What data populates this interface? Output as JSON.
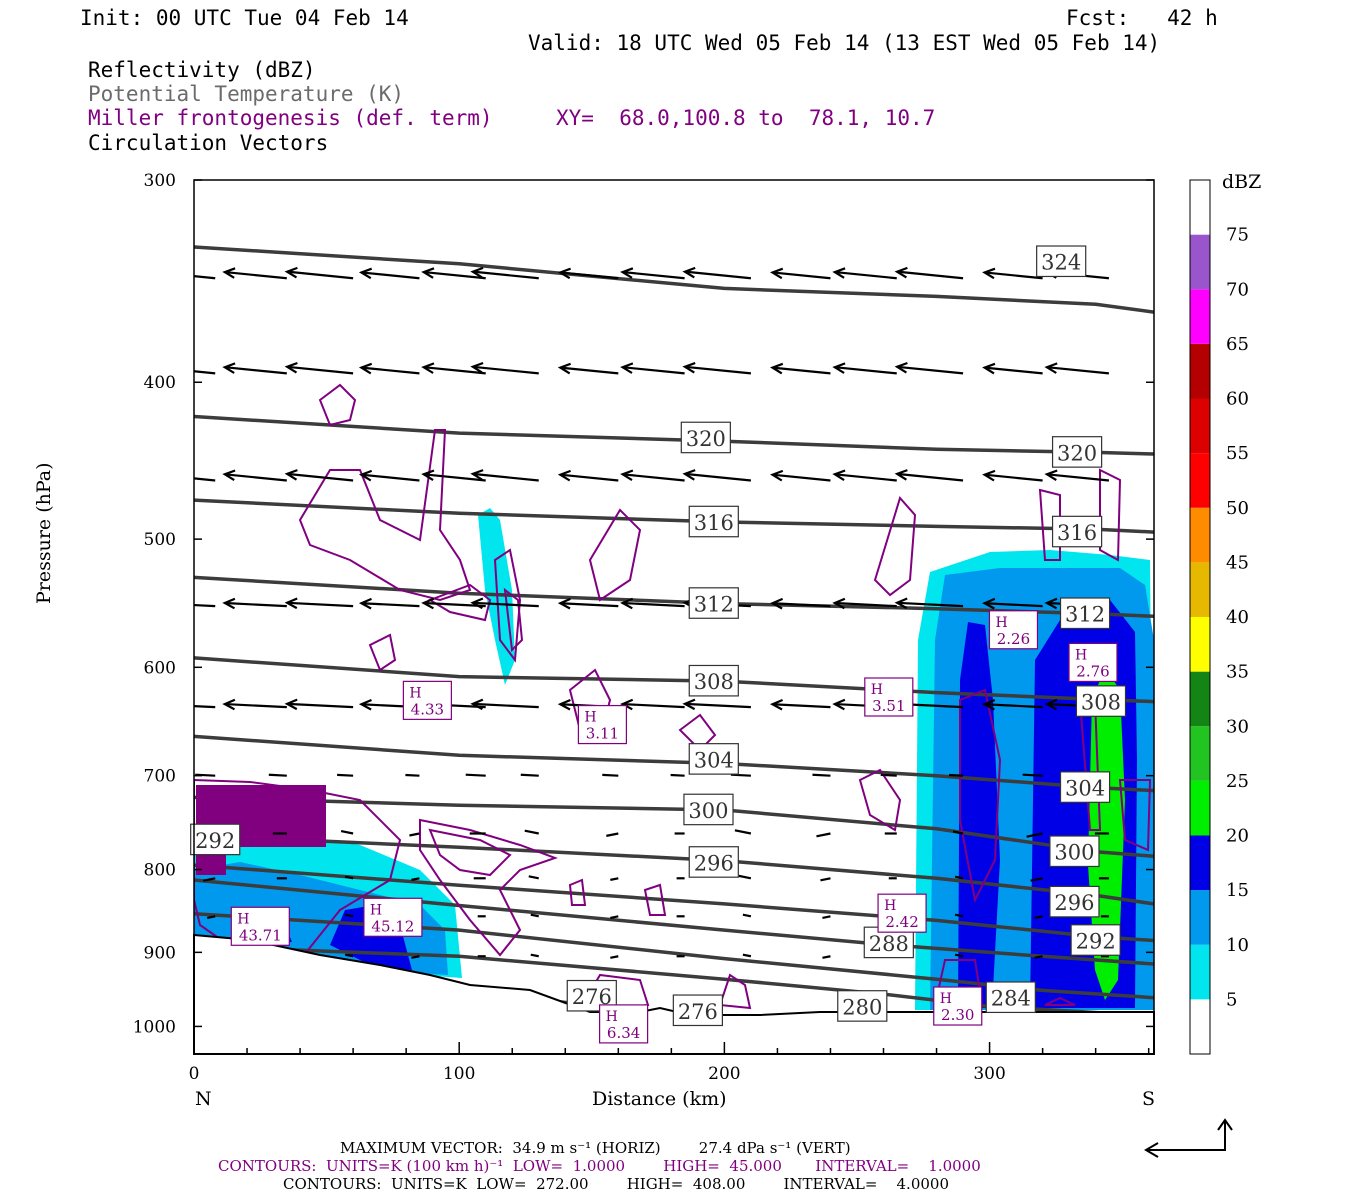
{
  "header": {
    "init": "Init: 00 UTC Tue 04 Feb 14",
    "fcst": "Fcst:   42 h",
    "valid": "Valid: 18 UTC Wed 05 Feb 14 (13 EST Wed 05 Feb 14)"
  },
  "legend_lines": {
    "reflectivity": "Reflectivity (dBZ)",
    "theta": "Potential Temperature (K)",
    "frontogenesis": "Miller frontogenesis (def. term)",
    "xy": "XY=  68.0,100.8 to  78.1, 10.7",
    "vectors": "Circulation Vectors"
  },
  "footer": {
    "max_vector": "MAXIMUM VECTOR:  34.9 m s⁻¹ (HORIZ)        27.4 dPa s⁻¹ (VERT)",
    "contours_fronto": "CONTOURS:  UNITS=K (100 km h)⁻¹  LOW=  1.0000        HIGH=  45.000       INTERVAL=    1.0000",
    "contours_theta": "CONTOURS:  UNITS=K  LOW=  272.00        HIGH=  408.00        INTERVAL=    4.0000"
  },
  "colors": {
    "theta_line": "#3c3c3c",
    "fronto": "#800080",
    "refl_5": "#00e5ee",
    "refl_10": "#0099ee",
    "refl_15": "#0000e6",
    "refl_20": "#00ee00"
  },
  "chart_data": {
    "type": "cross-section",
    "xlabel": "Distance (km)",
    "ylabel": "Pressure (hPa)",
    "xlim": [
      0,
      362
    ],
    "ylim": [
      1040,
      300
    ],
    "y_scale": "log-pressure",
    "x_ticks": [
      0,
      100,
      200,
      300
    ],
    "y_ticks": [
      300,
      400,
      500,
      600,
      700,
      800,
      900,
      1000
    ],
    "endpoints": {
      "left": "N",
      "right": "S"
    },
    "colorbar": {
      "label": "dBZ",
      "levels": [
        5,
        10,
        15,
        20,
        25,
        30,
        35,
        40,
        45,
        50,
        55,
        60,
        65,
        70,
        75
      ],
      "colors": [
        "#ffffff",
        "#00e5ee",
        "#0099ee",
        "#0000e6",
        "#00ee00",
        "#22c422",
        "#148414",
        "#ffff00",
        "#e6b800",
        "#ff8c00",
        "#ff0000",
        "#dd0000",
        "#b40000",
        "#ff00ff",
        "#9955cc",
        "#ffffff"
      ]
    },
    "theta_contours": [
      {
        "value": 276,
        "points": [
          [
            0,
            935
          ],
          [
            60,
            942
          ],
          [
            120,
            958
          ],
          [
            160,
            975
          ],
          [
            190,
            990
          ],
          [
            210,
            1000
          ]
        ],
        "labels": [
          {
            "x": 150,
            "y": 958
          },
          {
            "x": 190,
            "y": 978
          }
        ]
      },
      {
        "value": 280,
        "points": [
          [
            0,
            892
          ],
          [
            100,
            905
          ],
          [
            200,
            935
          ],
          [
            260,
            955
          ],
          [
            300,
            972
          ],
          [
            362,
            985
          ]
        ],
        "labels": [
          {
            "x": 252,
            "y": 972
          }
        ]
      },
      {
        "value": 284,
        "points": [
          [
            0,
            852
          ],
          [
            100,
            872
          ],
          [
            200,
            908
          ],
          [
            280,
            935
          ],
          [
            320,
            950
          ],
          [
            362,
            960
          ]
        ],
        "labels": [
          {
            "x": 308,
            "y": 960
          }
        ]
      },
      {
        "value": 288,
        "points": [
          [
            0,
            812
          ],
          [
            100,
            842
          ],
          [
            200,
            872
          ],
          [
            260,
            890
          ],
          [
            320,
            905
          ],
          [
            362,
            915
          ]
        ],
        "labels": [
          {
            "x": 262,
            "y": 888
          }
        ]
      },
      {
        "value": 292,
        "points": [
          [
            0,
            795
          ],
          [
            100,
            818
          ],
          [
            200,
            840
          ],
          [
            280,
            860
          ],
          [
            340,
            880
          ],
          [
            362,
            885
          ]
        ],
        "labels": [
          {
            "x": 8,
            "y": 767
          },
          {
            "x": 340,
            "y": 885
          }
        ]
      },
      {
        "value": 296,
        "points": [
          [
            0,
            762
          ],
          [
            100,
            775
          ],
          [
            200,
            790
          ],
          [
            280,
            810
          ],
          [
            340,
            830
          ],
          [
            362,
            840
          ]
        ],
        "labels": [
          {
            "x": 196,
            "y": 792
          },
          {
            "x": 332,
            "y": 838
          }
        ]
      },
      {
        "value": 300,
        "points": [
          [
            0,
            722
          ],
          [
            100,
            730
          ],
          [
            200,
            735
          ],
          [
            280,
            755
          ],
          [
            340,
            780
          ],
          [
            362,
            785
          ]
        ],
        "labels": [
          {
            "x": 194,
            "y": 735
          },
          {
            "x": 332,
            "y": 780
          }
        ]
      },
      {
        "value": 304,
        "points": [
          [
            0,
            662
          ],
          [
            100,
            680
          ],
          [
            200,
            688
          ],
          [
            280,
            700
          ],
          [
            340,
            712
          ],
          [
            362,
            715
          ]
        ],
        "labels": [
          {
            "x": 196,
            "y": 684
          },
          {
            "x": 336,
            "y": 712
          }
        ]
      },
      {
        "value": 308,
        "points": [
          [
            0,
            592
          ],
          [
            100,
            608
          ],
          [
            200,
            612
          ],
          [
            280,
            622
          ],
          [
            340,
            628
          ],
          [
            362,
            630
          ]
        ],
        "labels": [
          {
            "x": 196,
            "y": 612
          },
          {
            "x": 342,
            "y": 630
          }
        ]
      },
      {
        "value": 312,
        "points": [
          [
            0,
            528
          ],
          [
            100,
            540
          ],
          [
            200,
            548
          ],
          [
            280,
            552
          ],
          [
            340,
            556
          ],
          [
            362,
            558
          ]
        ],
        "labels": [
          {
            "x": 196,
            "y": 548
          },
          {
            "x": 336,
            "y": 556
          }
        ]
      },
      {
        "value": 316,
        "points": [
          [
            0,
            473
          ],
          [
            100,
            482
          ],
          [
            200,
            488
          ],
          [
            280,
            491
          ],
          [
            340,
            493
          ],
          [
            362,
            495
          ]
        ],
        "labels": [
          {
            "x": 196,
            "y": 488
          },
          {
            "x": 333,
            "y": 495
          }
        ]
      },
      {
        "value": 320,
        "points": [
          [
            0,
            420
          ],
          [
            100,
            430
          ],
          [
            200,
            435
          ],
          [
            280,
            440
          ],
          [
            340,
            442
          ],
          [
            362,
            443
          ]
        ],
        "labels": [
          {
            "x": 193,
            "y": 433
          },
          {
            "x": 333,
            "y": 442
          }
        ]
      },
      {
        "value": 324,
        "points": [
          [
            0,
            330
          ],
          [
            100,
            338
          ],
          [
            200,
            350
          ],
          [
            280,
            354
          ],
          [
            340,
            358
          ],
          [
            362,
            362
          ]
        ],
        "labels": []
      }
    ],
    "theta_label_324": {
      "x": 327,
      "y": 337
    },
    "fronto_maxima": [
      {
        "value": "4.33",
        "x": 88,
        "y": 628
      },
      {
        "value": "3.11",
        "x": 154,
        "y": 650
      },
      {
        "value": "3.51",
        "x": 262,
        "y": 625
      },
      {
        "value": "2.26",
        "x": 309,
        "y": 568
      },
      {
        "value": "2.76",
        "x": 339,
        "y": 595
      },
      {
        "value": "2.42",
        "x": 267,
        "y": 850
      },
      {
        "value": "45.12",
        "x": 75,
        "y": 855
      },
      {
        "value": "43.71",
        "x": 25,
        "y": 866
      },
      {
        "value": "6.34",
        "x": 162,
        "y": 995
      },
      {
        "value": "2.30",
        "x": 288,
        "y": 970
      }
    ],
    "max_vector": {
      "horiz": "34.9 m s⁻¹",
      "vert": "27.4 dPa s⁻¹"
    }
  }
}
